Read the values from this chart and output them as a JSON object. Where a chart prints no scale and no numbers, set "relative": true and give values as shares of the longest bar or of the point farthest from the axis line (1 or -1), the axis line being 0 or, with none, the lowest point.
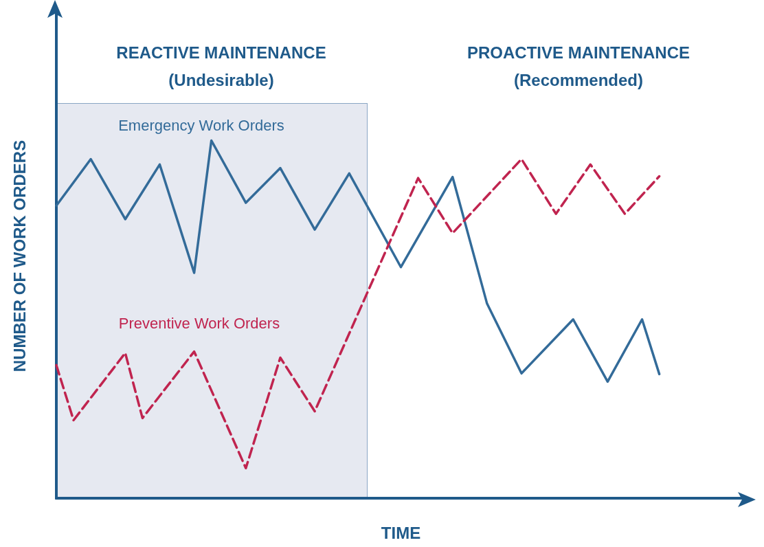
{
  "chart_data": {
    "type": "line",
    "relative": true,
    "xlabel": "TIME",
    "ylabel": "NUMBER OF WORK ORDERS",
    "grid": false,
    "legend": false,
    "marker": "none",
    "annotations": [
      "REACTIVE MAINTENANCE\n(Undesirable)",
      "PROACTIVE MAINTENANCE\n(Recommended)"
    ],
    "categories": [
      null,
      null,
      null,
      null,
      null,
      null,
      null,
      null,
      null,
      null,
      null,
      null,
      null,
      null,
      null,
      null,
      null,
      null,
      null,
      null,
      null,
      null,
      null,
      null,
      null,
      null,
      null,
      null,
      null,
      null,
      null,
      null,
      null,
      null,
      null,
      null,
      null,
      null,
      null,
      null,
      null
    ],
    "series": [
      {
        "name": "Emergency Work Orders",
        "color": "#336b99",
        "line_style": "solid",
        "values": [
          0.818,
          null,
          0.948,
          null,
          0.78,
          null,
          0.933,
          null,
          0.63,
          1,
          null,
          0.826,
          null,
          0.923,
          null,
          0.751,
          null,
          0.908,
          null,
          null,
          0.646,
          null,
          null,
          0.898,
          null,
          0.544,
          null,
          0.349,
          null,
          null,
          0.5,
          null,
          0.326,
          null,
          0.5,
          0.347,
          null,
          null,
          null,
          null,
          null
        ]
      },
      {
        "name": "Preventive Work Orders",
        "color": "#c0244f",
        "line_style": "dashed",
        "values": [
          0.372,
          0.218,
          null,
          null,
          0.406,
          0.224,
          null,
          null,
          0.41,
          null,
          null,
          0.084,
          null,
          0.393,
          null,
          0.243,
          null,
          null,
          null,
          null,
          null,
          0.895,
          null,
          0.741,
          null,
          null,
          null,
          0.948,
          null,
          0.795,
          null,
          0.933,
          null,
          0.795,
          null,
          0.9,
          null,
          null,
          null,
          null,
          null
        ]
      }
    ]
  }
}
